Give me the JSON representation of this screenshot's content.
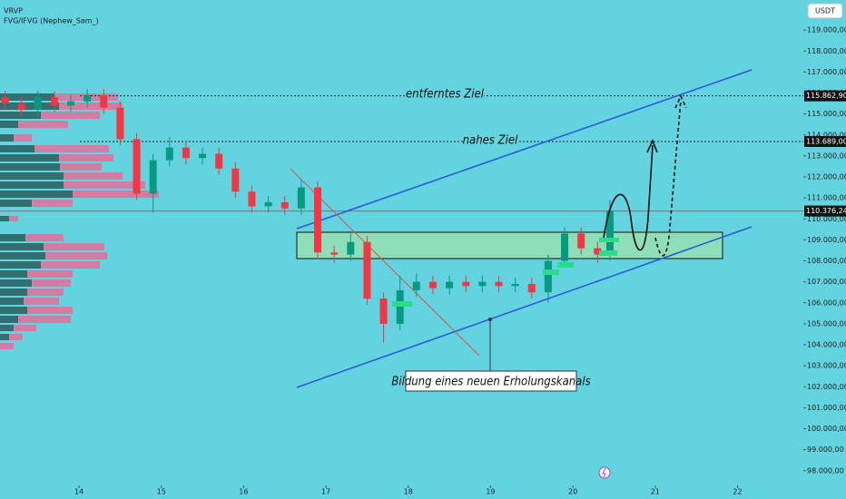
{
  "chart_data": {
    "type": "candlestick",
    "indicators": [
      "VRVP",
      "FVG/IFVG (Nephew_Sam_)"
    ],
    "currency": "USDT",
    "x": [
      13.1,
      13.3,
      13.5,
      13.7,
      13.9,
      14.1,
      14.3,
      14.5,
      14.7,
      14.9,
      15.1,
      15.3,
      15.5,
      15.7,
      15.9,
      16.1,
      16.3,
      16.5,
      16.7,
      16.9,
      17.1,
      17.3,
      17.5,
      17.7,
      17.9,
      18.1,
      18.3,
      18.5,
      18.7,
      18.9,
      19.1,
      19.3,
      19.5,
      19.7,
      19.9,
      20.1,
      20.3,
      20.45
    ],
    "open": [
      115800,
      115500,
      115200,
      115800,
      115400,
      115600,
      115900,
      115300,
      113800,
      111200,
      112800,
      113400,
      112900,
      113100,
      112400,
      111300,
      110600,
      110800,
      110500,
      111500,
      108400,
      108300,
      108900,
      106200,
      105000,
      106600,
      107000,
      106700,
      107000,
      106800,
      107000,
      106800,
      106900,
      106500,
      108000,
      109300,
      108600,
      108300
    ],
    "high": [
      116100,
      115800,
      116100,
      116100,
      115900,
      116200,
      116200,
      115600,
      114100,
      113100,
      113900,
      113700,
      113400,
      113400,
      112700,
      111600,
      111100,
      111100,
      111900,
      111800,
      108700,
      109300,
      109200,
      106500,
      107300,
      107400,
      107300,
      107300,
      107300,
      107300,
      107300,
      107200,
      107200,
      108300,
      109600,
      109600,
      108900,
      110900
    ],
    "low": [
      115200,
      114900,
      114900,
      115100,
      115100,
      115300,
      115000,
      113500,
      110900,
      110300,
      112500,
      112600,
      112600,
      112100,
      111000,
      110300,
      110300,
      110200,
      110200,
      108100,
      107900,
      108000,
      105900,
      104100,
      104700,
      106300,
      106400,
      106400,
      106500,
      106500,
      106500,
      106500,
      106200,
      106000,
      107700,
      108300,
      107900,
      108000
    ],
    "close": [
      115500,
      115200,
      115800,
      115400,
      115600,
      115900,
      115300,
      113800,
      111200,
      112800,
      113400,
      112900,
      113100,
      112400,
      111300,
      110600,
      110800,
      110500,
      111500,
      108400,
      108300,
      108900,
      106200,
      105000,
      106600,
      107000,
      106700,
      107000,
      106800,
      107000,
      106800,
      106900,
      106500,
      108000,
      109300,
      108600,
      108300,
      110376.24
    ],
    "up_color": "#089981",
    "down_color": "#f23645",
    "xlim": [
      13.04,
      22.8
    ],
    "xticks": [
      14,
      15,
      16,
      17,
      18,
      19,
      20,
      21,
      22
    ],
    "ylim": [
      97300,
      120000
    ],
    "yticks": [
      {
        "value": 98000,
        "label": "98.000,00"
      },
      {
        "value": 99000,
        "label": "99.000,00"
      },
      {
        "value": 100000,
        "label": "100.000,00"
      },
      {
        "value": 101000,
        "label": "101.000,00"
      },
      {
        "value": 102000,
        "label": "102.000,00"
      },
      {
        "value": 103000,
        "label": "103.000,00"
      },
      {
        "value": 104000,
        "label": "104.000,00"
      },
      {
        "value": 105000,
        "label": "105.000,00"
      },
      {
        "value": 106000,
        "label": "106.000,00"
      },
      {
        "value": 107000,
        "label": "107.000,00"
      },
      {
        "value": 108000,
        "label": "108.000,00"
      },
      {
        "value": 109000,
        "label": "109.000,00"
      },
      {
        "value": 110000,
        "label": "110.000,00"
      },
      {
        "value": 111000,
        "label": "111.000,00"
      },
      {
        "value": 112000,
        "label": "112.000,00"
      },
      {
        "value": 113000,
        "label": "113.000,00"
      },
      {
        "value": 114000,
        "label": "114.000,00"
      },
      {
        "value": 115000,
        "label": "115.000,00"
      },
      {
        "value": 116000,
        "label": "116.000,00"
      },
      {
        "value": 117000,
        "label": "117.000,00"
      },
      {
        "value": 118000,
        "label": "118.000,00"
      },
      {
        "value": 119000,
        "label": "119.000,00"
      }
    ],
    "levels": [
      {
        "value": 115862.9,
        "label": "115.862,90",
        "style": "dotted"
      },
      {
        "value": 113689,
        "label": "113.689,00",
        "style": "dotted"
      },
      {
        "value": 110376.24,
        "label": "110.376,24",
        "style": "solid"
      }
    ],
    "annotations": {
      "far_target": "entferntes Ziel",
      "near_target": "nahes Ziel",
      "channel_note": "Bildung eines neuen Erholungskanals"
    }
  }
}
